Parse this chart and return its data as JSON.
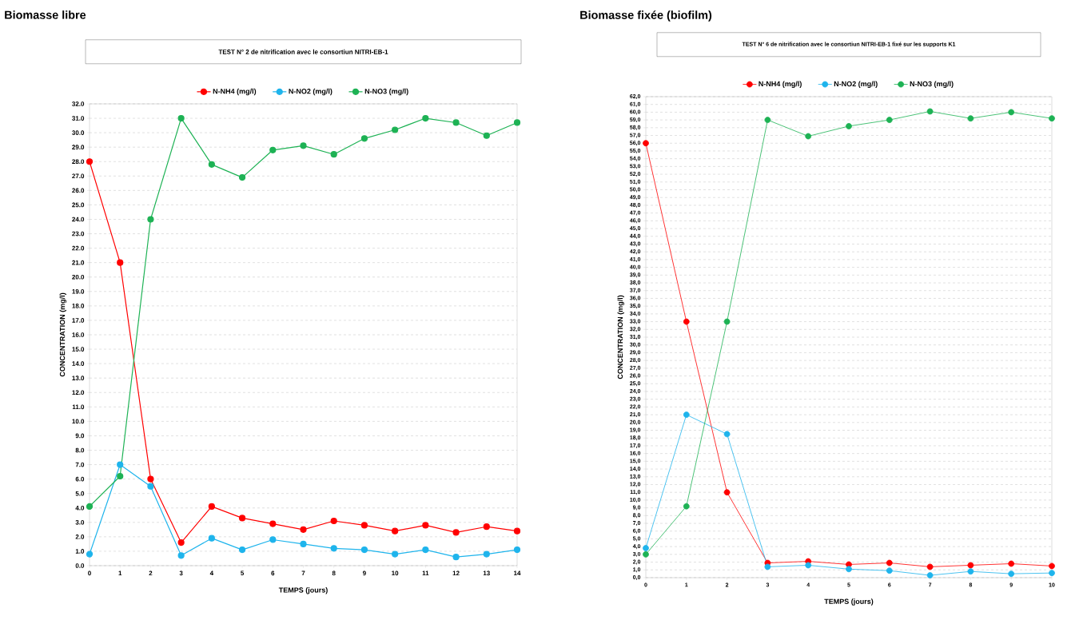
{
  "chart_data": [
    {
      "type": "line",
      "title": "Biomasse libre",
      "subtitle": "TEST N° 2 de nitrification avec le consortiun NITRI-EB-1",
      "xlabel": "TEMPS (jours)",
      "ylabel": "CONCENTRATION  (mg/l)",
      "legend": "top",
      "grid": "y",
      "marker": "circle",
      "line_style": "solid",
      "x": [
        0,
        1,
        2,
        3,
        4,
        5,
        6,
        7,
        8,
        9,
        10,
        11,
        12,
        13,
        14
      ],
      "xlim": [
        0,
        14
      ],
      "xticks": [
        0,
        1,
        2,
        3,
        4,
        5,
        6,
        7,
        8,
        9,
        10,
        11,
        12,
        13,
        14
      ],
      "ylim": [
        0,
        32
      ],
      "yticks": [
        {
          "value": 0,
          "label": "0.0"
        },
        {
          "value": 1,
          "label": "1.0"
        },
        {
          "value": 2,
          "label": "2.0"
        },
        {
          "value": 3,
          "label": "3.0"
        },
        {
          "value": 4,
          "label": "4.0"
        },
        {
          "value": 5,
          "label": "5.0"
        },
        {
          "value": 6,
          "label": "6.0"
        },
        {
          "value": 7,
          "label": "7.0"
        },
        {
          "value": 8,
          "label": "8.0"
        },
        {
          "value": 9,
          "label": "9.0"
        },
        {
          "value": 10,
          "label": "10.0"
        },
        {
          "value": 11,
          "label": "11.0"
        },
        {
          "value": 12,
          "label": "12.0"
        },
        {
          "value": 13,
          "label": "13.0"
        },
        {
          "value": 14,
          "label": "14.0"
        },
        {
          "value": 15,
          "label": "15.0"
        },
        {
          "value": 16,
          "label": "16.0"
        },
        {
          "value": 17,
          "label": "17.0"
        },
        {
          "value": 18,
          "label": "18.0"
        },
        {
          "value": 19,
          "label": "19.0"
        },
        {
          "value": 20,
          "label": "20.0"
        },
        {
          "value": 21,
          "label": "21.0"
        },
        {
          "value": 22,
          "label": "22.0"
        },
        {
          "value": 23,
          "label": "23.0"
        },
        {
          "value": 24,
          "label": "24.0"
        },
        {
          "value": 25,
          "label": "25.0"
        },
        {
          "value": 26,
          "label": "26.0"
        },
        {
          "value": 27,
          "label": "27.0"
        },
        {
          "value": 28,
          "label": "28.0"
        },
        {
          "value": 29,
          "label": "29.0"
        },
        {
          "value": 30,
          "label": "30.0"
        },
        {
          "value": 31,
          "label": "31.0"
        },
        {
          "value": 32,
          "label": "32.0"
        }
      ],
      "series": [
        {
          "name": "N-NH4 (mg/l)",
          "color": "#ff0000",
          "values": [
            28,
            21,
            6,
            1.6,
            4.1,
            3.3,
            2.9,
            2.5,
            3.1,
            2.8,
            2.4,
            2.8,
            2.3,
            2.7,
            2.4
          ]
        },
        {
          "name": "N-NO2 (mg/l)",
          "color": "#1eb4ec",
          "values": [
            0.8,
            7.0,
            5.5,
            0.7,
            1.9,
            1.1,
            1.8,
            1.5,
            1.2,
            1.1,
            0.8,
            1.1,
            0.6,
            0.8,
            1.1
          ]
        },
        {
          "name": "N-NO3 (mg/l)",
          "color": "#1db254",
          "values": [
            4.1,
            6.2,
            24.0,
            31.0,
            27.8,
            26.9,
            28.8,
            29.1,
            28.5,
            29.6,
            30.2,
            31.0,
            30.7,
            29.8,
            30.7
          ]
        }
      ]
    },
    {
      "type": "line",
      "title": "Biomasse fixée (biofilm)",
      "subtitle": "TEST N° 6 de nitrification avec le consortiun NITRI-EB-1 fixé sur les supports K1",
      "xlabel": "TEMPS (jours)",
      "ylabel": "CONCENTRATION  (mg/l)",
      "legend": "top",
      "grid": "y",
      "marker": "circle",
      "line_style": "solid",
      "x": [
        0,
        1,
        2,
        3,
        4,
        5,
        6,
        7,
        8,
        9,
        10
      ],
      "xlim": [
        0,
        10
      ],
      "xticks": [
        0,
        1,
        2,
        3,
        4,
        5,
        6,
        7,
        8,
        9,
        10
      ],
      "ylim": [
        0,
        62
      ],
      "yticks": [
        {
          "value": 0,
          "label": "0,0"
        },
        {
          "value": 1,
          "label": "1,0"
        },
        {
          "value": 2,
          "label": "2,0"
        },
        {
          "value": 3,
          "label": "3,0"
        },
        {
          "value": 4,
          "label": "4,0"
        },
        {
          "value": 5,
          "label": "5,0"
        },
        {
          "value": 6,
          "label": "6,0"
        },
        {
          "value": 7,
          "label": "7,0"
        },
        {
          "value": 8,
          "label": "8,0"
        },
        {
          "value": 9,
          "label": "9,0"
        },
        {
          "value": 10,
          "label": "10,0"
        },
        {
          "value": 11,
          "label": "11,0"
        },
        {
          "value": 12,
          "label": "12,0"
        },
        {
          "value": 13,
          "label": "13,0"
        },
        {
          "value": 14,
          "label": "14,0"
        },
        {
          "value": 15,
          "label": "15,0"
        },
        {
          "value": 16,
          "label": "16,0"
        },
        {
          "value": 17,
          "label": "17,0"
        },
        {
          "value": 18,
          "label": "18,0"
        },
        {
          "value": 19,
          "label": "19,0"
        },
        {
          "value": 20,
          "label": "20,0"
        },
        {
          "value": 21,
          "label": "21,0"
        },
        {
          "value": 22,
          "label": "22,0"
        },
        {
          "value": 23,
          "label": "23,0"
        },
        {
          "value": 24,
          "label": "24,0"
        },
        {
          "value": 25,
          "label": "25,0"
        },
        {
          "value": 26,
          "label": "26,0"
        },
        {
          "value": 27,
          "label": "27,0"
        },
        {
          "value": 28,
          "label": "28,0"
        },
        {
          "value": 29,
          "label": "29,0"
        },
        {
          "value": 30,
          "label": "30,0"
        },
        {
          "value": 31,
          "label": "31,0"
        },
        {
          "value": 32,
          "label": "32,0"
        },
        {
          "value": 33,
          "label": "33,0"
        },
        {
          "value": 34,
          "label": "34,0"
        },
        {
          "value": 35,
          "label": "35,0"
        },
        {
          "value": 36,
          "label": "36,0"
        },
        {
          "value": 37,
          "label": "37,0"
        },
        {
          "value": 38,
          "label": "38,0"
        },
        {
          "value": 39,
          "label": "39,0"
        },
        {
          "value": 40,
          "label": "40,0"
        },
        {
          "value": 41,
          "label": "41,0"
        },
        {
          "value": 42,
          "label": "42,0"
        },
        {
          "value": 43,
          "label": "43,0"
        },
        {
          "value": 44,
          "label": "44,0"
        },
        {
          "value": 45,
          "label": "45,0"
        },
        {
          "value": 46,
          "label": "46,0"
        },
        {
          "value": 47,
          "label": "47,0"
        },
        {
          "value": 48,
          "label": "48,0"
        },
        {
          "value": 49,
          "label": "49,0"
        },
        {
          "value": 50,
          "label": "50,0"
        },
        {
          "value": 51,
          "label": "51,0"
        },
        {
          "value": 52,
          "label": "52,0"
        },
        {
          "value": 53,
          "label": "53,0"
        },
        {
          "value": 54,
          "label": "54,0"
        },
        {
          "value": 55,
          "label": "55,0"
        },
        {
          "value": 56,
          "label": "56,0"
        },
        {
          "value": 57,
          "label": "57,0"
        },
        {
          "value": 58,
          "label": "58,0"
        },
        {
          "value": 59,
          "label": "59,0"
        },
        {
          "value": 60,
          "label": "60,0"
        },
        {
          "value": 61,
          "label": "61,0"
        },
        {
          "value": 62,
          "label": "62,0"
        }
      ],
      "series": [
        {
          "name": "N-NH4 (mg/l)",
          "color": "#ff0000",
          "values": [
            56,
            33,
            11,
            1.9,
            2.1,
            1.7,
            1.9,
            1.4,
            1.6,
            1.8,
            1.5
          ]
        },
        {
          "name": "N-NO2 (mg/l)",
          "color": "#1eb4ec",
          "values": [
            3.8,
            21,
            18.5,
            1.4,
            1.6,
            1.1,
            0.9,
            0.3,
            0.8,
            0.5,
            0.6
          ]
        },
        {
          "name": "N-NO3 (mg/l)",
          "color": "#1db254",
          "values": [
            3.0,
            9.2,
            33,
            59,
            56.9,
            58.2,
            59.0,
            60.1,
            59.2,
            60.0,
            59.2
          ]
        }
      ]
    }
  ]
}
